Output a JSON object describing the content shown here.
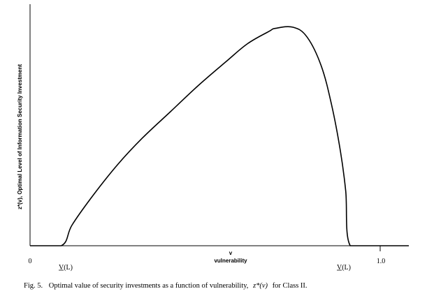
{
  "chart_data": {
    "type": "line",
    "ylabel": "z*(v), Optimal Level of Information Security Investment",
    "xlabel_symbol": "v",
    "xlabel": "vulnerability",
    "ticks": {
      "origin": "0",
      "one": "1.0",
      "v_low_left": "V(L)",
      "v_low_right": "V(L)"
    },
    "x": [
      0.0,
      0.089,
      0.12,
      0.18,
      0.25,
      0.32,
      0.4,
      0.48,
      0.56,
      0.62,
      0.68,
      0.7,
      0.75,
      0.79,
      0.83,
      0.86,
      0.885,
      0.9,
      0.913,
      0.99,
      1.0,
      1.08
    ],
    "y": [
      0.0,
      0.0,
      0.095,
      0.23,
      0.37,
      0.49,
      0.61,
      0.73,
      0.84,
      0.92,
      0.975,
      0.99,
      0.995,
      0.95,
      0.82,
      0.64,
      0.43,
      0.25,
      0.0,
      0.0,
      0.0,
      0.0
    ],
    "xlim": [
      0,
      1.08
    ],
    "ylim": [
      0,
      1.1
    ],
    "grid": false,
    "legend": "none"
  },
  "caption": {
    "prefix": "Fig. 5.",
    "text_main": "Optimal value of security investments as a function of vulnerability,",
    "formula": "z*(v)",
    "text_end": "for Class II."
  }
}
